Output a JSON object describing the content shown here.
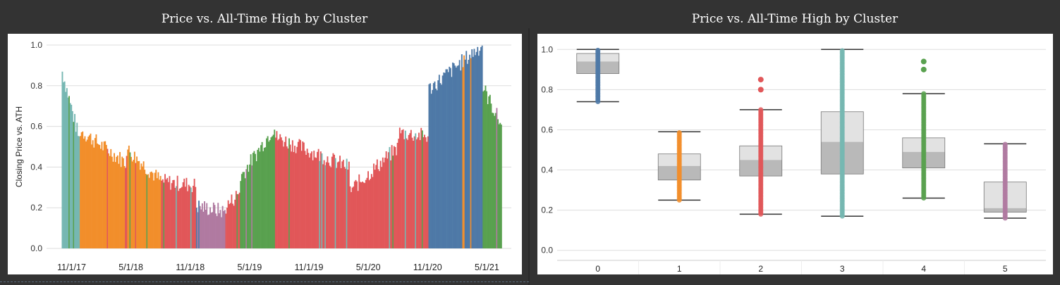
{
  "left_panel": {
    "title": "Price vs. All-Time High by Cluster"
  },
  "right_panel": {
    "title": "Price vs. All-Time High by Cluster"
  },
  "colors": {
    "c0": "#4e79a7",
    "c1": "#f28e2b",
    "c2": "#e15759",
    "c3": "#76b7b2",
    "c4": "#59a14f",
    "c5": "#b07aa1"
  },
  "chart_data": [
    {
      "type": "bar",
      "title": "Price vs. All-Time High by Cluster",
      "xlabel": "",
      "ylabel": "Closing Price vs. ATH",
      "ylim": [
        0,
        1.0
      ],
      "yticks": [
        "0.0",
        "0.2",
        "0.4",
        "0.6",
        "0.8",
        "1.0"
      ],
      "xticks": [
        "11/1/17",
        "5/1/18",
        "11/1/18",
        "5/1/19",
        "11/1/19",
        "5/1/20",
        "11/1/20",
        "5/1/21"
      ],
      "series_segments": [
        {
          "from": "10/1/17",
          "to": "11/25/17",
          "cluster": 3,
          "start_value": 0.87,
          "end_value": 0.52
        },
        {
          "from": "11/25/17",
          "to": "4/15/18",
          "cluster": 1,
          "start_value": 0.58,
          "end_value": 0.42
        },
        {
          "from": "4/15/18",
          "to": "8/1/18",
          "cluster": 1,
          "start_value": 0.49,
          "end_value": 0.33
        },
        {
          "from": "8/1/18",
          "to": "11/15/18",
          "cluster": 2,
          "start_value": 0.33,
          "end_value": 0.31
        },
        {
          "from": "11/15/18",
          "to": "2/15/19",
          "cluster": 5,
          "start_value": 0.21,
          "end_value": 0.18
        },
        {
          "from": "2/15/19",
          "to": "4/1/19",
          "cluster": 2,
          "start_value": 0.2,
          "end_value": 0.28
        },
        {
          "from": "4/1/19",
          "to": "7/15/19",
          "cluster": 4,
          "start_value": 0.35,
          "end_value": 0.6
        },
        {
          "from": "7/15/19",
          "to": "3/1/20",
          "cluster": 2,
          "start_value": 0.55,
          "end_value": 0.4
        },
        {
          "from": "3/1/20",
          "to": "8/1/20",
          "cluster": 2,
          "start_value": 0.28,
          "end_value": 0.5
        },
        {
          "from": "8/1/20",
          "to": "11/1/20",
          "cluster": 2,
          "start_value": 0.57,
          "end_value": 0.55
        },
        {
          "from": "11/1/20",
          "to": "4/15/21",
          "cluster": 0,
          "start_value": 0.78,
          "end_value": 1.0
        },
        {
          "from": "4/15/21",
          "to": "6/15/21",
          "cluster": 4,
          "start_value": 0.8,
          "end_value": 0.6
        }
      ]
    },
    {
      "type": "box",
      "title": "Price vs. All-Time High by Cluster",
      "xlabel": "",
      "ylabel": "",
      "ylim": [
        0,
        1.0
      ],
      "yticks": [
        "0.0",
        "0.2",
        "0.4",
        "0.6",
        "0.8",
        "1.0"
      ],
      "categories": [
        "0",
        "1",
        "2",
        "3",
        "4",
        "5"
      ],
      "boxes": [
        {
          "cluster": "0",
          "min": 0.74,
          "q1": 0.88,
          "median": 0.94,
          "q3": 0.98,
          "max": 1.0,
          "outliers": []
        },
        {
          "cluster": "1",
          "min": 0.25,
          "q1": 0.35,
          "median": 0.42,
          "q3": 0.48,
          "max": 0.59,
          "outliers": []
        },
        {
          "cluster": "2",
          "min": 0.18,
          "q1": 0.37,
          "median": 0.45,
          "q3": 0.52,
          "max": 0.7,
          "outliers": [
            0.8,
            0.85
          ]
        },
        {
          "cluster": "3",
          "min": 0.17,
          "q1": 0.38,
          "median": 0.54,
          "q3": 0.69,
          "max": 1.0,
          "outliers": []
        },
        {
          "cluster": "4",
          "min": 0.26,
          "q1": 0.41,
          "median": 0.49,
          "q3": 0.56,
          "max": 0.78,
          "outliers": [
            0.9,
            0.94
          ]
        },
        {
          "cluster": "5",
          "min": 0.16,
          "q1": 0.19,
          "median": 0.21,
          "q3": 0.34,
          "max": 0.53,
          "outliers": []
        }
      ]
    }
  ]
}
